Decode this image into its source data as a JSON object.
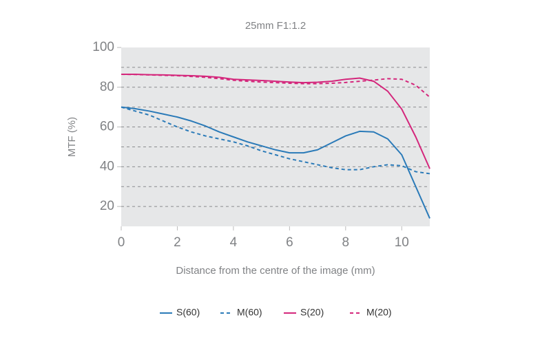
{
  "chart_data": {
    "type": "line",
    "title": "25mm F1:1.2",
    "x_label": "Distance from the centre of the image (mm)",
    "y_label": "MTF (%)",
    "x": [
      0,
      0.5,
      1,
      1.5,
      2,
      2.5,
      3,
      3.5,
      4,
      4.5,
      5,
      5.5,
      6,
      6.5,
      7,
      7.5,
      8,
      8.5,
      9,
      9.5,
      10,
      10.5,
      11
    ],
    "series": [
      {
        "name": "S(60)",
        "color": "#2a7ab8",
        "dashed": false,
        "values": [
          70,
          69.2,
          68,
          66.5,
          65,
          63,
          60.5,
          57.5,
          55,
          52.5,
          50.5,
          48.5,
          47,
          47,
          48.5,
          52,
          55.5,
          57.8,
          57.5,
          54,
          46,
          30,
          14
        ]
      },
      {
        "name": "M(60)",
        "color": "#2a7ab8",
        "dashed": true,
        "values": [
          70,
          68,
          66,
          63,
          60,
          57.5,
          55.5,
          54,
          52.5,
          50.5,
          48,
          46,
          44,
          42.5,
          41,
          39.5,
          38.5,
          38.5,
          40,
          41,
          40.5,
          37.5,
          36.5
        ]
      },
      {
        "name": "S(20)",
        "color": "#d4267b",
        "dashed": false,
        "values": [
          86.5,
          86.5,
          86.3,
          86.2,
          86,
          85.8,
          85.5,
          85,
          84,
          83.7,
          83.4,
          83,
          82.6,
          82.3,
          82.5,
          83,
          84,
          84.6,
          83,
          78,
          69,
          55,
          39
        ]
      },
      {
        "name": "M(20)",
        "color": "#d4267b",
        "dashed": true,
        "values": [
          86.5,
          86.4,
          86.2,
          86,
          85.8,
          85.4,
          85,
          84.3,
          83.5,
          83,
          82.6,
          82.3,
          82,
          81.8,
          81.8,
          82,
          82.4,
          83,
          83.6,
          84.3,
          84,
          81,
          75
        ]
      }
    ],
    "xlim": [
      0,
      11
    ],
    "xticks": [
      0,
      2,
      4,
      6,
      8,
      10
    ],
    "ylim": [
      10,
      100
    ],
    "yticks": [
      20,
      40,
      60,
      80,
      100
    ],
    "grid_lines": [
      20,
      30,
      40,
      50,
      60,
      70,
      80,
      90
    ],
    "plot_background": "#e6e7e8"
  }
}
